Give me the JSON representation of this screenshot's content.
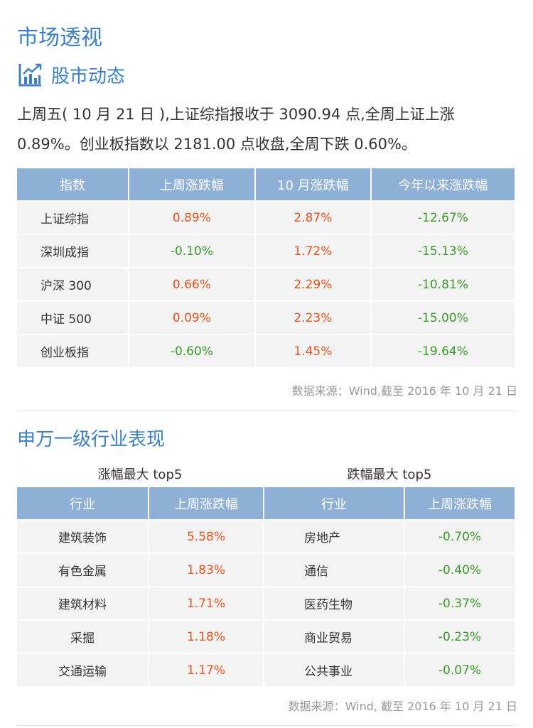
{
  "header": {
    "title": "市场透视",
    "subtitle": "股市动态",
    "summary": "上周五( 10 月 21 日 ),上证综指报收于 3090.94 点,全周上证上涨 0.89%。创业板指数以 2181.00 点收盘,全周下跌 0.60%。"
  },
  "index_table": {
    "headers": [
      "指数",
      "上周涨跌幅",
      "10 月涨跌幅",
      "今年以来涨跌幅"
    ],
    "rows": [
      [
        "上证综指",
        "0.89%",
        "2.87%",
        "-12.67%"
      ],
      [
        "深圳成指",
        "-0.10%",
        "1.72%",
        "-15.13%"
      ],
      [
        "沪深 300",
        "0.66%",
        "2.29%",
        "-10.81%"
      ],
      [
        "中证 500",
        "0.09%",
        "2.23%",
        "-15.00%"
      ],
      [
        "创业板指",
        "-0.60%",
        "1.45%",
        "-19.64%"
      ]
    ],
    "source": "数据来源：Wind,截至 2016 年 10 月 21 日"
  },
  "industry": {
    "title": "申万一级行业表现",
    "top_caption": "涨幅最大 top5",
    "bottom_caption": "跌幅最大 top5",
    "headers": [
      "行业",
      "上周涨跌幅"
    ],
    "top_rows": [
      [
        "建筑装饰",
        "5.58%"
      ],
      [
        "有色金属",
        "1.83%"
      ],
      [
        "建筑材料",
        "1.71%"
      ],
      [
        "采掘",
        "1.18%"
      ],
      [
        "交通运输",
        "1.17%"
      ]
    ],
    "bottom_rows": [
      [
        "房地产",
        "-0.70%"
      ],
      [
        "通信",
        "-0.40%"
      ],
      [
        "医药生物",
        "-0.37%"
      ],
      [
        "商业贸易",
        "-0.23%"
      ],
      [
        "公共事业",
        "-0.07%"
      ]
    ],
    "source": "数据来源：Wind, 截至 2016 年 10 月 21 日"
  },
  "colors": {
    "accent": "#3d7fc4",
    "header_bg": "#8fb0d6",
    "cell_bg": "#f3f3f3",
    "up": "#e8541e",
    "down": "#3a9a2a"
  },
  "icons": {
    "subtitle_icon": "bar-chart-trend-icon"
  }
}
